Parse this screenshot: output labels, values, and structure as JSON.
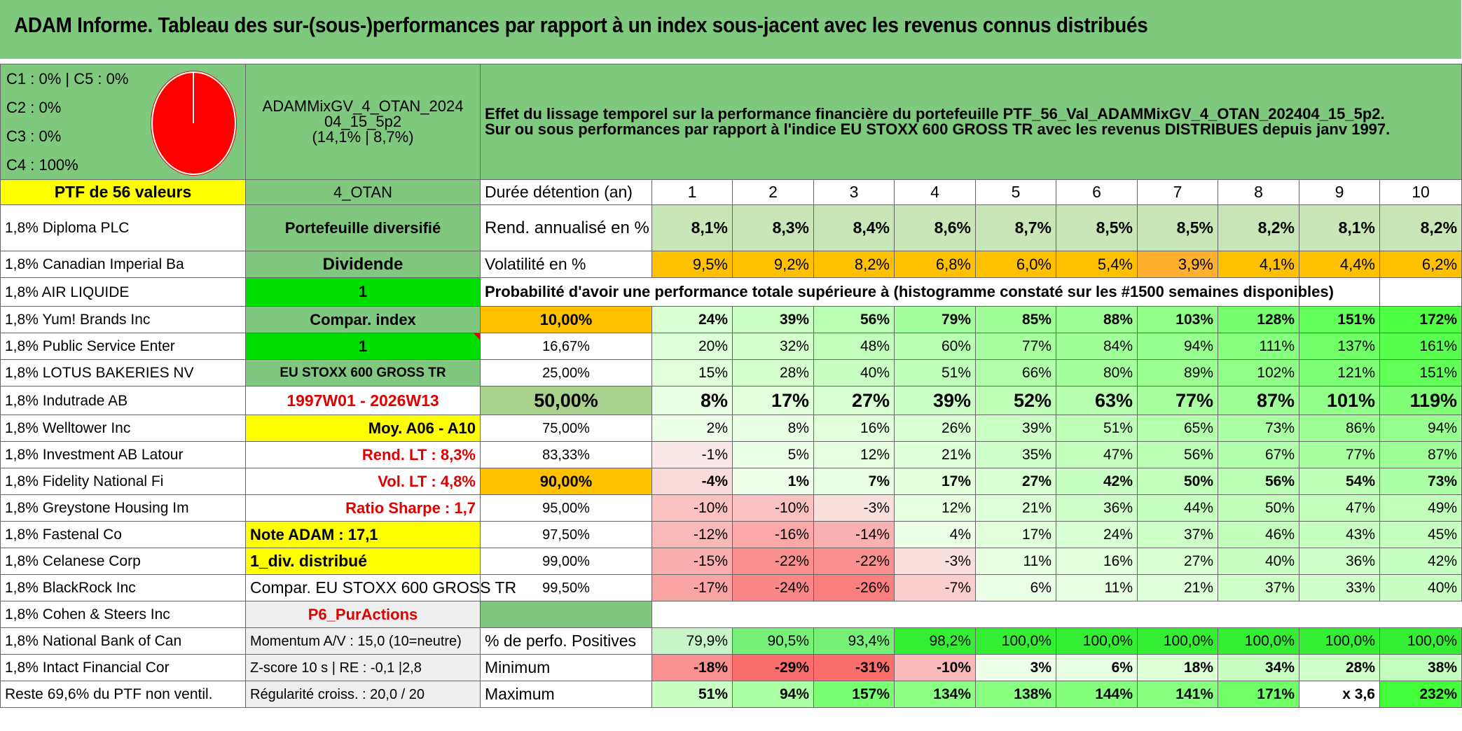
{
  "title": "ADAM Informe. Tableau des sur-(sous-)performances par rapport à un index sous-jacent avec les revenus connus distribués",
  "legend": [
    "C1 : 0% | C5 : 0%",
    "C2 : 0%",
    "C3 : 0%",
    "C4 : 100%"
  ],
  "pie": {
    "C1": 0,
    "C2": 0,
    "C3": 0,
    "C4": 100,
    "C5": 0,
    "color": "#ff0000"
  },
  "fund": {
    "line1": "ADAMMixGV_4_OTAN_2024",
    "line2": "04_15_5p2",
    "line3": "(14,1% | 8,7%)"
  },
  "description": {
    "line1": "Effet du lissage temporel sur la performance financière du portefeuille PTF_56_Val_ADAMMixGV_4_OTAN_202404_15_5p2.",
    "line2": "Sur ou sous performances par rapport à l'indice EU STOXX 600 GROSS TR avec les revenus DISTRIBUES depuis janv 1997."
  },
  "ptf_header": "PTF de 56 valeurs",
  "otan_label": "4_OTAN",
  "duration_label": "Durée détention (an)",
  "years": [
    "1",
    "2",
    "3",
    "4",
    "5",
    "6",
    "7",
    "8",
    "9",
    "10"
  ],
  "holdings": [
    "1,8% Diploma PLC",
    "1,8% Canadian Imperial Ba",
    "1,8% AIR LIQUIDE",
    "1,8% Yum! Brands Inc",
    "1,8% Public Service Enter",
    "1,8% LOTUS BAKERIES NV",
    "1,8% Indutrade AB",
    "1,8% Welltower Inc",
    "1,8% Investment AB Latour",
    "1,8% Fidelity National Fi",
    "1,8% Greystone Housing Im",
    "1,8% Fastenal Co",
    "1,8% Celanese Corp",
    "1,8% BlackRock Inc",
    "1,8% Cohen & Steers Inc",
    "1,8% National Bank of Can",
    "1,8% Intact Financial Cor",
    "Reste 69,6% du PTF non ventil."
  ],
  "info": [
    "Portefeuille diversifié",
    "Dividende",
    "1",
    "Compar. index",
    "1",
    "EU STOXX 600 GROSS TR",
    "1997W01 - 2026W13",
    "Moy. A06 - A10",
    "Rend. LT : 8,3%",
    "Vol. LT : 4,8%",
    "Ratio Sharpe : 1,7",
    "Note ADAM : 17,1",
    "1_div. distribué",
    "Compar. EU STOXX 600 GROSS TR",
    "P6_PurActions",
    "Momentum A/V : 15,0 (10=neutre)",
    "Z-score 10 s | RE : -0,1 |2,8",
    "Régularité croiss. : 20,0 / 20"
  ],
  "rend": {
    "label": "Rend. annualisé en %",
    "values": [
      "8,1%",
      "8,3%",
      "8,4%",
      "8,6%",
      "8,7%",
      "8,5%",
      "8,5%",
      "8,2%",
      "8,1%",
      "8,2%"
    ]
  },
  "vol": {
    "label": "Volatilité en %",
    "values": [
      "9,5%",
      "9,2%",
      "8,2%",
      "6,8%",
      "6,0%",
      "5,4%",
      "3,9%",
      "4,1%",
      "4,4%",
      "6,2%"
    ]
  },
  "proba_title": "Probabilité d'avoir une performance totale supérieure à (histogramme constaté sur les #1500 semaines disponibles)",
  "quantiles": [
    {
      "q": "10,00%",
      "v": [
        "24%",
        "39%",
        "56%",
        "79%",
        "85%",
        "88%",
        "103%",
        "128%",
        "151%",
        "172%"
      ]
    },
    {
      "q": "16,67%",
      "v": [
        "20%",
        "32%",
        "48%",
        "60%",
        "77%",
        "84%",
        "94%",
        "111%",
        "137%",
        "161%"
      ]
    },
    {
      "q": "25,00%",
      "v": [
        "15%",
        "28%",
        "40%",
        "51%",
        "66%",
        "80%",
        "89%",
        "102%",
        "121%",
        "151%"
      ]
    },
    {
      "q": "50,00%",
      "v": [
        "8%",
        "17%",
        "27%",
        "39%",
        "52%",
        "63%",
        "77%",
        "87%",
        "101%",
        "119%"
      ]
    },
    {
      "q": "75,00%",
      "v": [
        "2%",
        "8%",
        "16%",
        "26%",
        "39%",
        "51%",
        "65%",
        "73%",
        "86%",
        "94%"
      ]
    },
    {
      "q": "83,33%",
      "v": [
        "-1%",
        "5%",
        "12%",
        "21%",
        "35%",
        "47%",
        "56%",
        "67%",
        "77%",
        "87%"
      ]
    },
    {
      "q": "90,00%",
      "v": [
        "-4%",
        "1%",
        "7%",
        "17%",
        "27%",
        "42%",
        "50%",
        "56%",
        "54%",
        "73%"
      ]
    },
    {
      "q": "95,00%",
      "v": [
        "-10%",
        "-10%",
        "-3%",
        "12%",
        "21%",
        "36%",
        "44%",
        "50%",
        "47%",
        "49%"
      ]
    },
    {
      "q": "97,50%",
      "v": [
        "-12%",
        "-16%",
        "-14%",
        "4%",
        "17%",
        "24%",
        "37%",
        "46%",
        "43%",
        "45%"
      ]
    },
    {
      "q": "99,00%",
      "v": [
        "-15%",
        "-22%",
        "-22%",
        "-3%",
        "11%",
        "16%",
        "27%",
        "40%",
        "36%",
        "42%"
      ]
    },
    {
      "q": "99,50%",
      "v": [
        "-17%",
        "-24%",
        "-26%",
        "-7%",
        "6%",
        "11%",
        "21%",
        "37%",
        "33%",
        "40%"
      ]
    }
  ],
  "positives": {
    "label": "% de perfo. Positives",
    "values": [
      "79,9%",
      "90,5%",
      "93,4%",
      "98,2%",
      "100,0%",
      "100,0%",
      "100,0%",
      "100,0%",
      "100,0%",
      "100,0%"
    ]
  },
  "minimum": {
    "label": "Minimum",
    "values": [
      "-18%",
      "-29%",
      "-31%",
      "-10%",
      "3%",
      "6%",
      "18%",
      "34%",
      "28%",
      "38%"
    ]
  },
  "maximum": {
    "label": "Maximum",
    "values": [
      "51%",
      "94%",
      "157%",
      "134%",
      "138%",
      "144%",
      "141%",
      "171%",
      "x 3,6",
      "232%"
    ]
  }
}
